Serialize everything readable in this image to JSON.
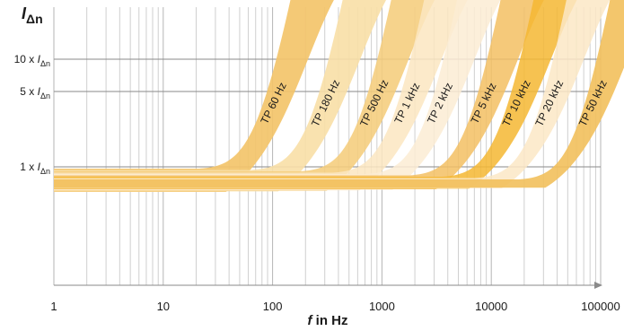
{
  "chart_data": {
    "type": "area",
    "x_scale": "log",
    "xlim": [
      1,
      100000
    ],
    "x_ticks": [
      {
        "value": 1,
        "label": "1"
      },
      {
        "value": 10,
        "label": "10"
      },
      {
        "value": 100,
        "label": "100"
      },
      {
        "value": 1000,
        "label": "1000"
      },
      {
        "value": 10000,
        "label": "10000"
      },
      {
        "value": 100000,
        "label": "100000"
      }
    ],
    "xlabel": {
      "symbol": "f",
      "text": " in Hz"
    },
    "ylabel": {
      "symbol": "I",
      "subscript": "Δn"
    },
    "y_ticks": [
      {
        "value": 10,
        "prefix": "10 x ",
        "symbol": "I",
        "subscript": "Δn"
      },
      {
        "value": 5,
        "prefix": "5 x ",
        "symbol": "I",
        "subscript": "Δn"
      },
      {
        "value": 1,
        "prefix": "1 x ",
        "symbol": "I",
        "subscript": "Δn"
      }
    ],
    "grid": true,
    "series": [
      {
        "name": "TP 60 Hz",
        "corner_hz": 60,
        "color": "#f3c46a",
        "opacity": 0.92
      },
      {
        "name": "TP 180 Hz",
        "corner_hz": 180,
        "color": "#f8dfa6",
        "opacity": 0.9
      },
      {
        "name": "TP 500 Hz",
        "corner_hz": 500,
        "color": "#f5cd7c",
        "opacity": 0.88
      },
      {
        "name": "TP 1 kHz",
        "corner_hz": 1000,
        "color": "#fbe6c1",
        "opacity": 0.85
      },
      {
        "name": "TP 2 kHz",
        "corner_hz": 2000,
        "color": "#fcecd4",
        "opacity": 0.85
      },
      {
        "name": "TP 5 kHz",
        "corner_hz": 5000,
        "color": "#f3c063",
        "opacity": 0.85
      },
      {
        "name": "TP 10 kHz",
        "corner_hz": 10000,
        "color": "#f5b733",
        "opacity": 0.85
      },
      {
        "name": "TP 20 kHz",
        "corner_hz": 20000,
        "color": "#fbe7c5",
        "opacity": 0.85
      },
      {
        "name": "TP 50 kHz",
        "corner_hz": 50000,
        "color": "#f2c05c",
        "opacity": 0.9
      }
    ]
  }
}
